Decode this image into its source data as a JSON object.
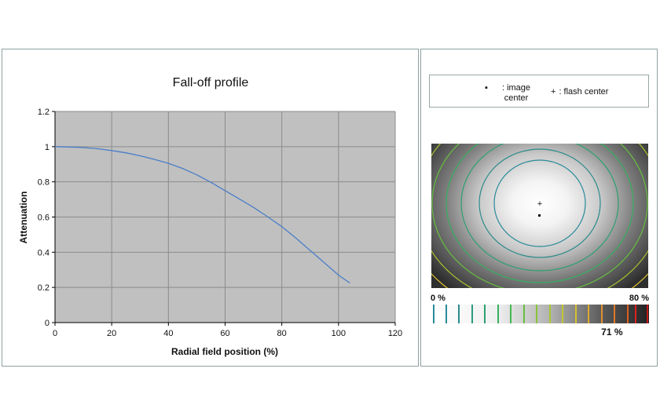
{
  "chart_data": {
    "type": "line",
    "title": "Fall-off profile",
    "xlabel": "Radial field position (%)",
    "ylabel": "Attenuation",
    "xlim": [
      0,
      120
    ],
    "ylim": [
      0,
      1.2
    ],
    "xticks": [
      "0",
      "20",
      "40",
      "60",
      "80",
      "100",
      "120"
    ],
    "yticks": [
      "0",
      "0.2",
      "0.4",
      "0.6",
      "0.8",
      "1",
      "1.2"
    ],
    "grid": true,
    "series": [
      {
        "color": "#4a7ec8",
        "x": [
          0,
          5,
          10,
          15,
          20,
          25,
          30,
          35,
          40,
          45,
          50,
          55,
          60,
          65,
          70,
          75,
          80,
          85,
          90,
          95,
          100,
          104
        ],
        "y": [
          1.0,
          0.998,
          0.995,
          0.988,
          0.978,
          0.965,
          0.948,
          0.928,
          0.905,
          0.876,
          0.84,
          0.797,
          0.75,
          0.703,
          0.655,
          0.602,
          0.545,
          0.48,
          0.41,
          0.34,
          0.27,
          0.225
        ]
      }
    ]
  },
  "legend": {
    "image_center_symbol": "▪",
    "image_center_text": ": image center",
    "flash_center_symbol": "+",
    "flash_center_text": ": flash center"
  },
  "scale": {
    "min_label": "0 %",
    "max_label": "80 %",
    "value_label": "71 %",
    "value_percent": 71
  },
  "colors": {
    "plot_bg": "#c0c0c0",
    "gridline": "#8c8c8c",
    "panel_border": "#8fa0a0"
  }
}
